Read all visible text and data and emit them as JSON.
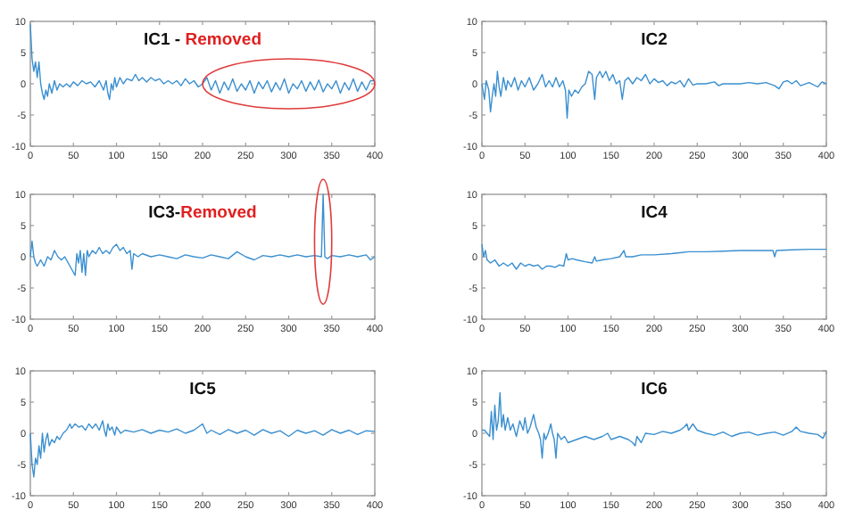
{
  "chart_data": [
    {
      "type": "line",
      "title": "IC1 -",
      "subtitle": "Removed",
      "color": "#3a8fd0",
      "xlim": [
        0,
        400
      ],
      "ylim": [
        -10,
        10
      ],
      "xticks": [
        0,
        50,
        100,
        150,
        200,
        250,
        300,
        350,
        400
      ],
      "yticks": [
        -10,
        -5,
        0,
        5,
        10
      ],
      "x": [
        0,
        2,
        4,
        6,
        8,
        10,
        12,
        14,
        16,
        18,
        20,
        22,
        25,
        28,
        31,
        34,
        38,
        42,
        46,
        50,
        55,
        60,
        65,
        70,
        75,
        80,
        85,
        88,
        90,
        92,
        94,
        96,
        98,
        100,
        104,
        108,
        112,
        118,
        122,
        126,
        130,
        135,
        140,
        145,
        150,
        155,
        160,
        165,
        170,
        175,
        180,
        185,
        190,
        195,
        200,
        205,
        210,
        215,
        220,
        225,
        230,
        235,
        240,
        245,
        250,
        255,
        260,
        265,
        270,
        275,
        280,
        285,
        290,
        295,
        300,
        305,
        310,
        315,
        320,
        325,
        330,
        335,
        340,
        345,
        350,
        355,
        360,
        365,
        370,
        375,
        380,
        385,
        390,
        395,
        400
      ],
      "values": [
        9.5,
        4,
        2,
        3.5,
        1,
        3.5,
        0,
        -1.5,
        -2.5,
        -1,
        -2,
        0,
        -1.5,
        0.5,
        -1,
        0,
        -0.5,
        0,
        -0.5,
        0.3,
        -0.3,
        0.5,
        0,
        0.3,
        -0.5,
        0.5,
        -1,
        0.5,
        -1.5,
        -2.5,
        0,
        -1,
        1,
        -0.5,
        1,
        0,
        0.8,
        0.5,
        1.5,
        0.5,
        1,
        0.3,
        1,
        0.5,
        0.8,
        0,
        0.5,
        0,
        0.5,
        -0.3,
        0.8,
        0,
        0.5,
        -0.5,
        0,
        1,
        -1,
        0.5,
        -1.5,
        0.3,
        -1,
        0.8,
        -1.2,
        0,
        -1,
        0.5,
        -1.5,
        0.3,
        -0.8,
        0.5,
        -1.3,
        0.2,
        -1,
        0.8,
        -1.5,
        0,
        -0.8,
        0.5,
        -1.2,
        0.3,
        -1,
        0.6,
        -1.3,
        0,
        -0.8,
        0.5,
        -1.5,
        0.2,
        -1,
        0.8,
        -1.2,
        0.3,
        -1,
        0.5,
        0.5
      ]
    },
    {
      "type": "line",
      "title": "IC2",
      "color": "#3a8fd0",
      "xlim": [
        0,
        400
      ],
      "ylim": [
        -10,
        10
      ],
      "xticks": [
        0,
        50,
        100,
        150,
        200,
        250,
        300,
        350,
        400
      ],
      "yticks": [
        -10,
        -5,
        0,
        5,
        10
      ],
      "x": [
        0,
        3,
        5,
        8,
        10,
        12,
        14,
        16,
        18,
        20,
        22,
        25,
        28,
        30,
        34,
        38,
        42,
        46,
        50,
        55,
        60,
        65,
        70,
        74,
        78,
        82,
        86,
        90,
        94,
        97,
        99,
        101,
        104,
        108,
        112,
        116,
        120,
        124,
        128,
        131,
        133,
        137,
        140,
        144,
        148,
        152,
        156,
        160,
        163,
        166,
        170,
        175,
        180,
        185,
        190,
        195,
        200,
        205,
        210,
        215,
        220,
        225,
        230,
        235,
        240,
        245,
        250,
        260,
        270,
        275,
        280,
        290,
        300,
        310,
        320,
        330,
        340,
        345,
        350,
        355,
        360,
        365,
        370,
        380,
        390,
        395,
        400
      ],
      "values": [
        0,
        -2.5,
        0.5,
        -1,
        -4.5,
        -2,
        0,
        -2,
        2,
        -0.5,
        -2,
        1,
        -1,
        0.5,
        -0.5,
        1,
        -1,
        0.5,
        -0.5,
        1,
        -1,
        0,
        1.5,
        -0.5,
        0.5,
        -0.5,
        1,
        -0.5,
        0.5,
        -1,
        -5.5,
        -1,
        -2,
        -1,
        -1.5,
        -0.5,
        0,
        2,
        1.5,
        -2.5,
        1,
        2,
        1,
        2,
        0.5,
        1.5,
        0,
        0.5,
        -2.5,
        0.5,
        1,
        0,
        1,
        0.5,
        1.5,
        0,
        0.8,
        0.2,
        0.5,
        -0.3,
        0.3,
        0,
        0.5,
        -0.5,
        0.8,
        -0.2,
        0,
        0,
        0.3,
        -0.3,
        0,
        0,
        0,
        0.2,
        0,
        0.2,
        -0.3,
        -0.8,
        0.3,
        0.5,
        0,
        0.5,
        -0.3,
        0.2,
        -0.5,
        0.3,
        0
      ]
    },
    {
      "type": "line",
      "title": "IC3-",
      "subtitle": "Removed",
      "color": "#3a8fd0",
      "xlim": [
        0,
        400
      ],
      "ylim": [
        -10,
        10
      ],
      "xticks": [
        0,
        50,
        100,
        150,
        200,
        250,
        300,
        350,
        400
      ],
      "yticks": [
        -10,
        -5,
        0,
        5,
        10
      ],
      "x": [
        0,
        2,
        4,
        6,
        8,
        12,
        16,
        20,
        24,
        28,
        32,
        36,
        40,
        44,
        48,
        52,
        54,
        56,
        58,
        60,
        62,
        64,
        66,
        68,
        72,
        76,
        80,
        84,
        88,
        92,
        96,
        100,
        104,
        108,
        112,
        116,
        118,
        120,
        125,
        130,
        140,
        150,
        160,
        170,
        180,
        190,
        200,
        210,
        220,
        230,
        240,
        250,
        260,
        270,
        280,
        290,
        300,
        310,
        320,
        330,
        338,
        340,
        342,
        345,
        350,
        360,
        370,
        380,
        390,
        395,
        400
      ],
      "values": [
        0,
        2.5,
        0,
        -1,
        -1.5,
        -0.5,
        -1.5,
        0,
        -0.5,
        1,
        0,
        -0.5,
        0,
        -1,
        -2,
        -3,
        0.5,
        -1,
        1,
        -2.5,
        0.5,
        -3,
        1,
        0,
        1,
        0.5,
        1.5,
        0.5,
        1,
        0.5,
        1.5,
        2,
        1,
        1.5,
        0.5,
        1,
        -2,
        0.5,
        0,
        0.5,
        0,
        0.3,
        0,
        -0.3,
        0.3,
        0,
        -0.2,
        0.3,
        0,
        -0.3,
        0.8,
        0,
        -0.5,
        0.2,
        0,
        0.3,
        0,
        0.3,
        0,
        0.2,
        0,
        10,
        0,
        -0.3,
        0.2,
        0,
        0.3,
        0,
        0.3,
        -0.5,
        0
      ]
    },
    {
      "type": "line",
      "title": "IC4",
      "color": "#3a8fd0",
      "xlim": [
        0,
        400
      ],
      "ylim": [
        -10,
        10
      ],
      "xticks": [
        0,
        50,
        100,
        150,
        200,
        250,
        300,
        350,
        400
      ],
      "yticks": [
        -10,
        -5,
        0,
        5,
        10
      ],
      "x": [
        0,
        2,
        4,
        6,
        10,
        15,
        20,
        25,
        30,
        35,
        40,
        45,
        50,
        55,
        60,
        65,
        70,
        75,
        80,
        85,
        90,
        95,
        98,
        100,
        105,
        110,
        120,
        128,
        131,
        133,
        140,
        150,
        160,
        165,
        167,
        175,
        185,
        200,
        220,
        240,
        260,
        280,
        300,
        320,
        338,
        340,
        342,
        360,
        380,
        400
      ],
      "values": [
        2,
        0,
        1,
        -0.5,
        -1,
        -0.5,
        -1.5,
        -1,
        -1.5,
        -1,
        -2,
        -1,
        -1.5,
        -1.2,
        -1.5,
        -1.3,
        -2,
        -1.5,
        -1.5,
        -1.7,
        -1.3,
        -1.5,
        0.5,
        -0.5,
        -0.3,
        -0.5,
        -0.8,
        -1,
        0,
        -0.7,
        -0.5,
        -0.3,
        0,
        1,
        0,
        0,
        0.3,
        0.3,
        0.5,
        0.8,
        0.8,
        0.9,
        1,
        1,
        1,
        0,
        1,
        1.1,
        1.2,
        1.2
      ]
    },
    {
      "type": "line",
      "title": "IC5",
      "color": "#3a8fd0",
      "xlim": [
        0,
        400
      ],
      "ylim": [
        -10,
        10
      ],
      "xticks": [
        0,
        50,
        100,
        150,
        200,
        250,
        300,
        350,
        400
      ],
      "yticks": [
        -10,
        -5,
        0,
        5,
        10
      ],
      "x": [
        0,
        2,
        4,
        6,
        8,
        10,
        12,
        14,
        16,
        18,
        20,
        22,
        25,
        28,
        31,
        34,
        38,
        42,
        46,
        48,
        52,
        56,
        60,
        64,
        68,
        72,
        76,
        80,
        84,
        86,
        88,
        90,
        92,
        95,
        98,
        100,
        105,
        110,
        120,
        130,
        140,
        150,
        160,
        170,
        180,
        190,
        200,
        205,
        210,
        220,
        230,
        240,
        250,
        260,
        270,
        280,
        290,
        300,
        310,
        320,
        330,
        340,
        350,
        360,
        370,
        380,
        390,
        400
      ],
      "values": [
        0,
        -5,
        -7,
        -4,
        -5,
        -2,
        -4,
        0,
        -3,
        -1,
        0,
        -2,
        -1,
        -1.5,
        -0.5,
        -1,
        0,
        0.5,
        1.5,
        0.8,
        1.5,
        1,
        1.2,
        0.5,
        1.5,
        0.8,
        1.5,
        0.5,
        2,
        0.5,
        -0.5,
        1.5,
        0.5,
        1,
        -0.3,
        1,
        0,
        0.5,
        0.2,
        0.6,
        0,
        0.5,
        0.2,
        0.7,
        0,
        0.5,
        1.5,
        0,
        0.5,
        -0.2,
        0.6,
        0,
        0.5,
        -0.3,
        0.6,
        0,
        0.4,
        -0.5,
        0.5,
        0,
        0.4,
        -0.3,
        0.6,
        0,
        0.5,
        -0.2,
        0.4,
        0.3
      ]
    },
    {
      "type": "line",
      "title": "IC6",
      "color": "#3a8fd0",
      "xlim": [
        0,
        400
      ],
      "ylim": [
        -10,
        10
      ],
      "xticks": [
        0,
        50,
        100,
        150,
        200,
        250,
        300,
        350,
        400
      ],
      "yticks": [
        -10,
        -5,
        0,
        5,
        10
      ],
      "x": [
        0,
        3,
        6,
        9,
        11,
        13,
        15,
        17,
        19,
        21,
        23,
        25,
        27,
        30,
        33,
        36,
        40,
        44,
        48,
        50,
        53,
        56,
        60,
        63,
        66,
        68,
        70,
        72,
        74,
        77,
        80,
        82,
        84,
        86,
        88,
        92,
        96,
        100,
        110,
        120,
        130,
        140,
        146,
        150,
        160,
        170,
        175,
        178,
        180,
        185,
        190,
        200,
        210,
        220,
        230,
        235,
        238,
        240,
        245,
        250,
        260,
        270,
        280,
        290,
        300,
        310,
        320,
        330,
        340,
        350,
        360,
        365,
        370,
        380,
        390,
        396,
        400
      ],
      "values": [
        0.5,
        0.5,
        0,
        -0.5,
        3.5,
        -1,
        4.5,
        0.5,
        2,
        6.5,
        1,
        3,
        0.5,
        2.5,
        0.5,
        1.5,
        -0.5,
        2,
        0.5,
        2.5,
        0,
        1,
        3,
        1,
        0,
        -1,
        -4,
        0,
        -1,
        0,
        1.5,
        0,
        -1,
        -4,
        0,
        -1,
        -0.5,
        -1.5,
        -1,
        -0.5,
        -1,
        -0.5,
        0,
        -1,
        -0.5,
        -1,
        -1.5,
        -2,
        -0.5,
        -1.5,
        0,
        -0.2,
        0.3,
        0,
        0.5,
        1,
        1.5,
        0.5,
        1.5,
        0.5,
        0,
        -0.3,
        0.2,
        -0.5,
        0,
        0.2,
        -0.3,
        0,
        0.2,
        -0.3,
        0.3,
        1,
        0.3,
        0,
        -0.2,
        -0.8,
        0.3
      ]
    }
  ]
}
